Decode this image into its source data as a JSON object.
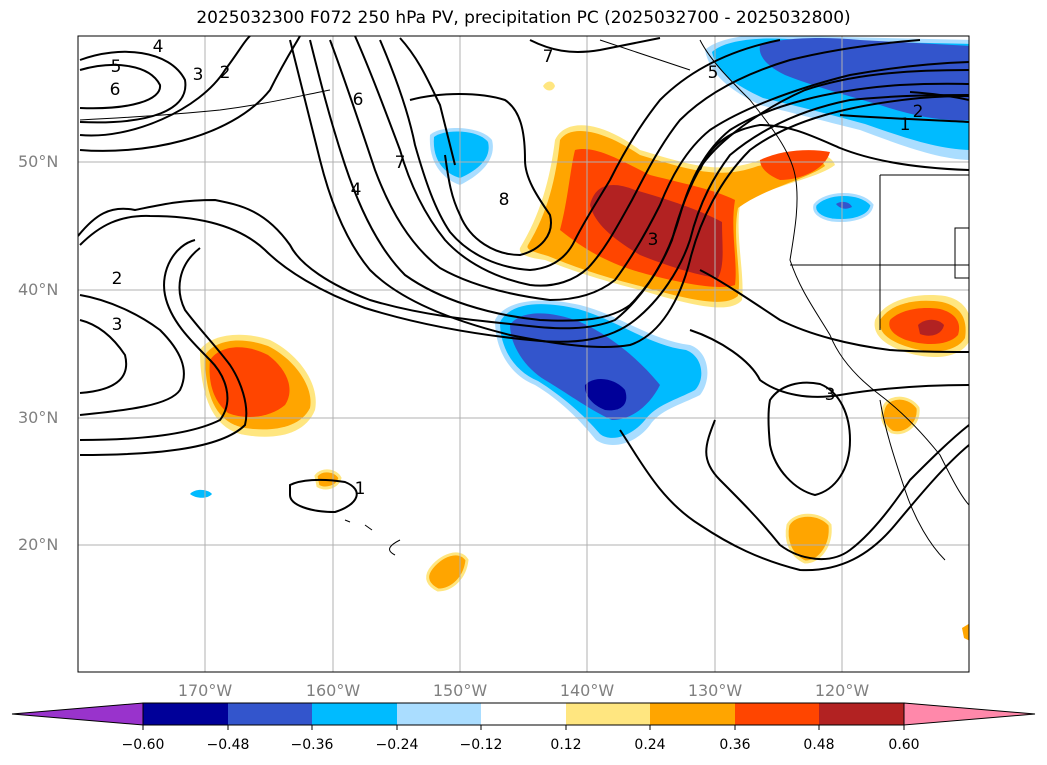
{
  "title": "2025032300 F072 250 hPa PV, precipitation PC (2025032700 - 2025032800)",
  "map": {
    "lat_labels": [
      "50°N",
      "40°N",
      "30°N",
      "20°N"
    ],
    "lon_labels": [
      "170°W",
      "160°W",
      "150°W",
      "140°W",
      "130°W",
      "120°W"
    ],
    "contour_labels": [
      "5",
      "4",
      "3",
      "2",
      "6",
      "6",
      "7",
      "7",
      "4",
      "8",
      "5",
      "2",
      "1",
      "3",
      "2",
      "3",
      "3",
      "1"
    ]
  },
  "colorbar": {
    "ticks": [
      "−0.60",
      "−0.48",
      "−0.36",
      "−0.24",
      "−0.12",
      "0.12",
      "0.24",
      "0.36",
      "0.48",
      "0.60"
    ],
    "colors": [
      "#9933cc",
      "#000099",
      "#3355cc",
      "#00bbff",
      "#aaddff",
      "#ffffff",
      "#ffe680",
      "#ffa500",
      "#ff4500",
      "#b22222",
      "#ff88aa"
    ]
  }
}
